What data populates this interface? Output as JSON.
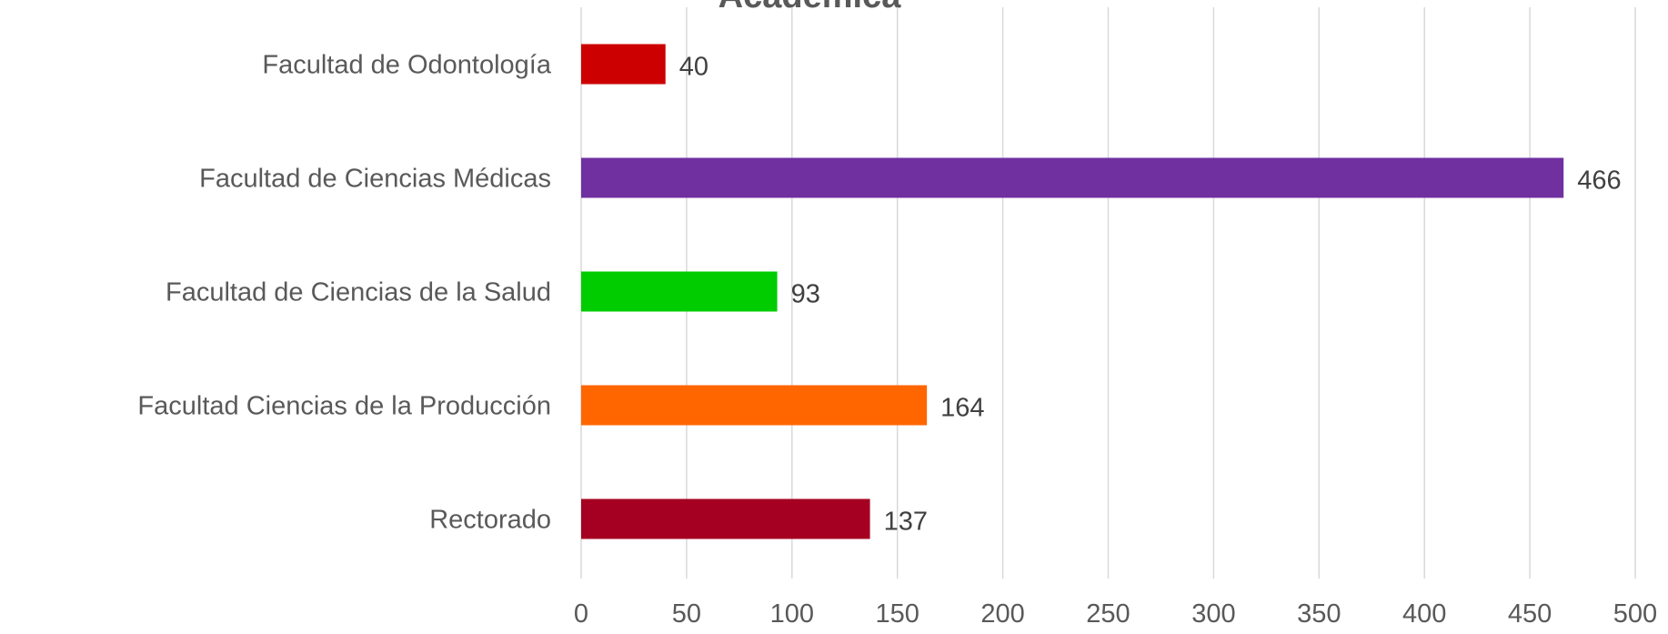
{
  "chart_data": {
    "type": "bar",
    "orientation": "horizontal",
    "title": "Académica",
    "categories": [
      "Facultad de Odontología",
      "Facultad de Ciencias Médicas",
      "Facultad de Ciencias de la Salud",
      "Facultad Ciencias de la Producción",
      "Rectorado"
    ],
    "values": [
      40,
      466,
      93,
      164,
      137
    ],
    "colors": [
      "#cc0000",
      "#7030a0",
      "#00cc00",
      "#ff6600",
      "#a50021"
    ],
    "xlim": [
      0,
      500
    ],
    "xticks": [
      0,
      50,
      100,
      150,
      200,
      250,
      300,
      350,
      400,
      450,
      500
    ],
    "grid": true,
    "data_labels": true
  }
}
